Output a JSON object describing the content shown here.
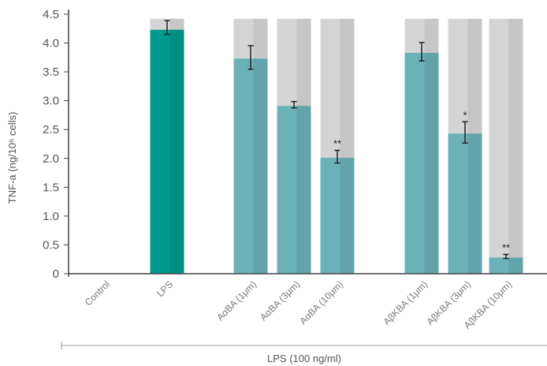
{
  "chart_data": {
    "type": "bar",
    "ylabel": "TNF-a (ng/10⁶ cells)",
    "ylim": [
      0,
      4.5
    ],
    "yticks": [
      "0",
      "0.5",
      "1.0",
      "1.5",
      "2.0",
      "2.5",
      "3.0",
      "3.5",
      "4.0",
      "4.5"
    ],
    "categories": [
      "Control",
      "LPS",
      "AαBA (1μm)",
      "AαBA (3μm)",
      "AαBA (10μm)",
      "AβKBA (1μm)",
      "AβKBA (3μm)",
      "AβKBA (10μm)"
    ],
    "values": [
      0,
      4.23,
      3.73,
      2.91,
      2.01,
      3.83,
      2.43,
      0.28
    ],
    "errors": [
      0,
      0.24,
      0.41,
      0.11,
      0.22,
      0.32,
      0.37,
      0.07
    ],
    "significance": [
      "",
      "",
      "",
      "",
      "**",
      "",
      "*",
      "**"
    ],
    "background_max": 4.42,
    "group_label": "LPS (100 ng/ml)",
    "colors": {
      "lps": "#00998f",
      "treatment": "#6bb2b8",
      "background": "#d4d4d4",
      "axis": "#444444"
    }
  }
}
